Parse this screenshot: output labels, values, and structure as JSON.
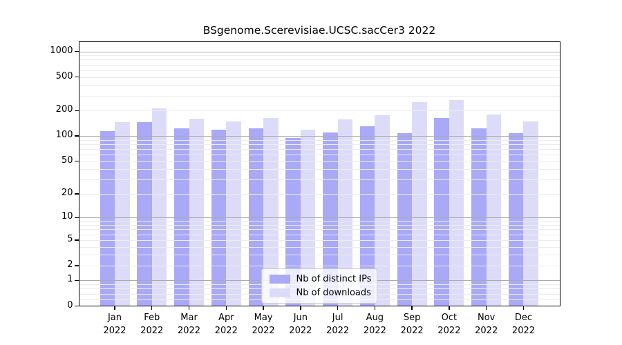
{
  "chart_data": {
    "type": "bar",
    "title": "BSgenome.Scerevisiae.UCSC.sacCer3 2022",
    "months": [
      "Jan",
      "Feb",
      "Mar",
      "Apr",
      "May",
      "Jun",
      "Jul",
      "Aug",
      "Sep",
      "Oct",
      "Nov",
      "Dec"
    ],
    "year": "2022",
    "series": [
      {
        "name": "Nb of distinct IPs",
        "color": "#a9a9f7",
        "values": [
          114,
          147,
          123,
          119,
          123,
          95,
          110,
          131,
          107,
          164,
          123,
          107
        ]
      },
      {
        "name": "Nb of downloads",
        "color": "#dcdcf9",
        "values": [
          145,
          214,
          161,
          150,
          164,
          119,
          157,
          177,
          253,
          267,
          181,
          150
        ]
      }
    ],
    "y_axis": {
      "scale": "log1p",
      "ticks": [
        0,
        1,
        2,
        5,
        10,
        20,
        50,
        100,
        200,
        500,
        1000
      ],
      "major_gridlines": [
        1,
        10,
        100,
        1000
      ],
      "minor_gridlines": [
        0.2,
        0.4,
        0.6,
        0.8,
        2,
        3,
        4,
        5,
        6,
        7,
        8,
        9,
        20,
        30,
        40,
        50,
        60,
        70,
        80,
        90,
        200,
        300,
        400,
        500,
        600,
        700,
        800,
        900
      ]
    },
    "xlabel": "",
    "ylabel": "",
    "grid": true,
    "legend_position": "inside-bottom-center",
    "colors": {
      "major_grid": "#ababab",
      "minor_grid": "#ececec",
      "axis": "#000000",
      "legend_border": "#cccccc",
      "legend_background": "rgba(255,255,255,0.78)",
      "background": "#ffffff"
    }
  }
}
